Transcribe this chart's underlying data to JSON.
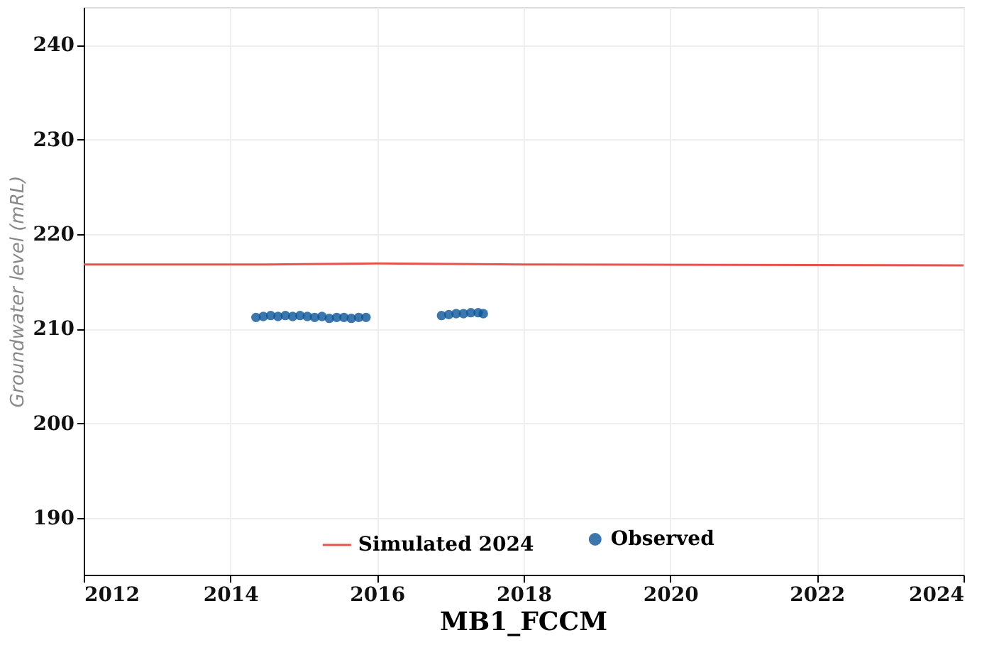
{
  "chart_data": {
    "type": "scatter",
    "title": "MB1_FCCM",
    "ylabel": "Groundwater level (mRL)",
    "xlim": [
      2012,
      2024
    ],
    "xticks": [
      2012,
      2014,
      2016,
      2018,
      2020,
      2022,
      2024
    ],
    "ylim": [
      184,
      244
    ],
    "yticks": [
      190,
      200,
      210,
      220,
      230,
      240
    ],
    "grid": true,
    "legend": "bottom",
    "series": [
      {
        "name": "Simulated 2024",
        "type": "line",
        "color": "#e8534f",
        "line_style": "solid",
        "marker": "none",
        "x": [
          2012,
          2014.5,
          2016,
          2018,
          2024
        ],
        "values": [
          216.8,
          216.8,
          216.9,
          216.8,
          216.7
        ]
      },
      {
        "name": "Observed",
        "marker": "circle",
        "color": "#0a5599",
        "x": [
          2014.35,
          2014.45,
          2014.55,
          2014.65,
          2014.75,
          2014.85,
          2014.95,
          2015.05,
          2015.15,
          2015.25,
          2015.35,
          2015.45,
          2015.55,
          2015.65,
          2015.75,
          2015.85,
          2016.88,
          2016.98,
          2017.08,
          2017.18,
          2017.28,
          2017.38,
          2017.45
        ],
        "values": [
          211.2,
          211.3,
          211.4,
          211.3,
          211.4,
          211.3,
          211.4,
          211.3,
          211.2,
          211.3,
          211.1,
          211.2,
          211.2,
          211.1,
          211.2,
          211.2,
          211.4,
          211.5,
          211.6,
          211.6,
          211.7,
          211.7,
          211.6
        ]
      }
    ]
  }
}
